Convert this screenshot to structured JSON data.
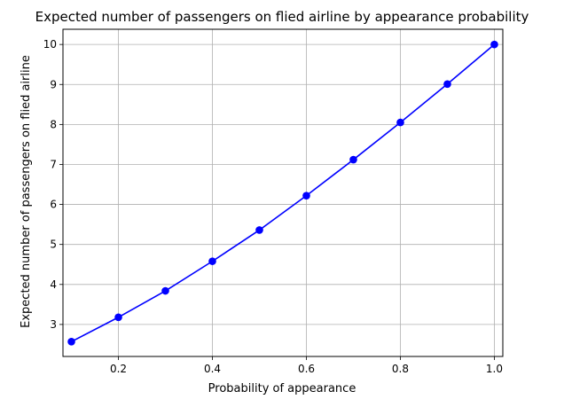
{
  "chart_data": {
    "type": "line",
    "title": "Expected number of passengers on flied airline by appearance probability",
    "xlabel": "Probability of appearance",
    "ylabel": "Expected number of passengers on flied airline",
    "xlim": [
      0.082,
      1.018
    ],
    "ylim": [
      2.2,
      10.38
    ],
    "xticks": [
      0.2,
      0.4,
      0.6,
      0.8,
      1.0
    ],
    "xtick_labels": [
      "0.2",
      "0.4",
      "0.6",
      "0.8",
      "1.0"
    ],
    "yticks": [
      3,
      4,
      5,
      6,
      7,
      8,
      9,
      10
    ],
    "ytick_labels": [
      "3",
      "4",
      "5",
      "6",
      "7",
      "8",
      "9",
      "10"
    ],
    "grid": true,
    "legend": false,
    "series": [
      {
        "color": "#0000ff",
        "marker": "circle",
        "x": [
          0.1,
          0.2,
          0.3,
          0.4,
          0.5,
          0.6,
          0.7,
          0.8,
          0.9,
          1.0
        ],
        "y": [
          2.57,
          3.18,
          3.84,
          4.58,
          5.36,
          6.22,
          7.12,
          8.05,
          9.01,
          10.0
        ]
      }
    ]
  }
}
